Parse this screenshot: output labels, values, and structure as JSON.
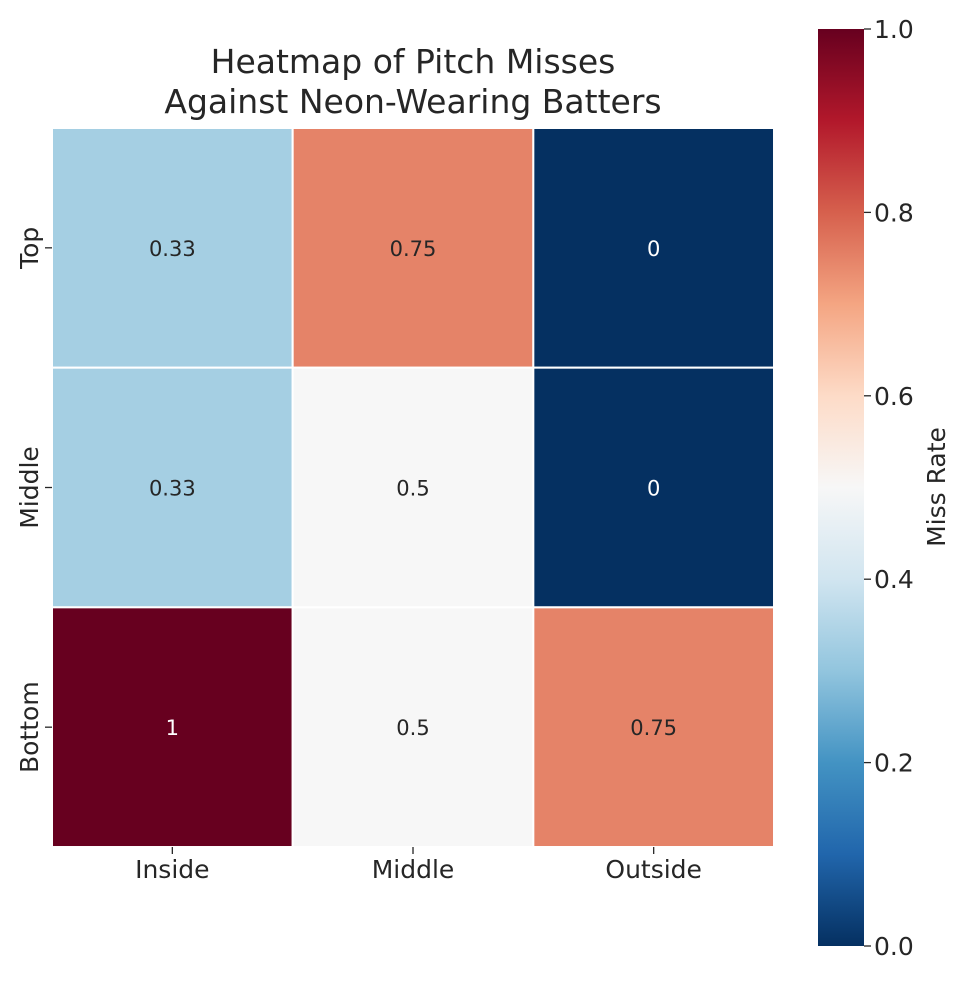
{
  "chart_data": {
    "type": "heatmap",
    "title_lines": [
      "Heatmap of Pitch Misses",
      "Against Neon-Wearing Batters"
    ],
    "x_categories": [
      "Inside",
      "Middle",
      "Outside"
    ],
    "y_categories": [
      "Top",
      "Middle",
      "Bottom"
    ],
    "values": [
      [
        0.33,
        0.75,
        0
      ],
      [
        0.33,
        0.5,
        0
      ],
      [
        1,
        0.5,
        0.75
      ]
    ],
    "value_labels": [
      [
        "0.33",
        "0.75",
        "0"
      ],
      [
        "0.33",
        "0.5",
        "0"
      ],
      [
        "1",
        "0.5",
        "0.75"
      ]
    ],
    "colorbar": {
      "label": "Miss Rate",
      "range": [
        0.0,
        1.0
      ],
      "ticks": [
        "0.0",
        "0.2",
        "0.4",
        "0.6",
        "0.8",
        "1.0"
      ],
      "colormap": "RdBu_r",
      "stops": [
        "#053061",
        "#2166ac",
        "#4393c3",
        "#92c5de",
        "#d1e5f0",
        "#f7f7f7",
        "#fddbc7",
        "#f4a582",
        "#d6604d",
        "#b2182b",
        "#67001f"
      ]
    },
    "grid_line_color": "#ffffff"
  }
}
